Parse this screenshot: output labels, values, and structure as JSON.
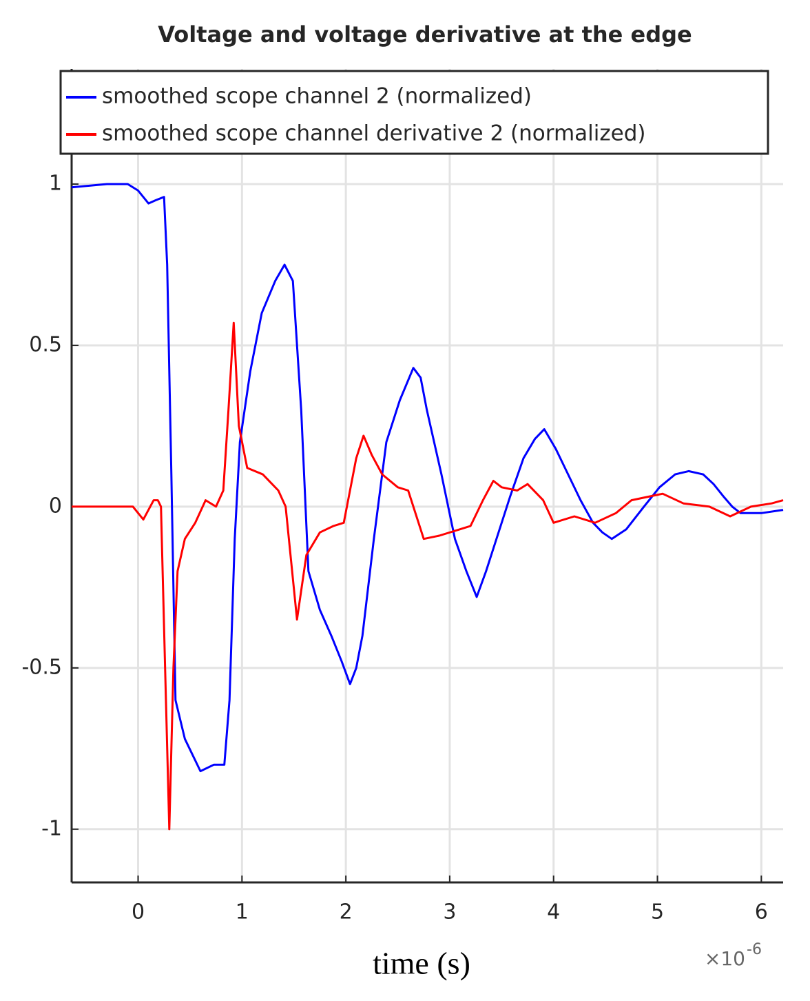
{
  "chart_data": {
    "type": "line",
    "title": "Voltage and voltage derivative at the edge",
    "xlabel": "time (s)",
    "x_multiplier": "×10",
    "x_exponent": "-6",
    "xlim": [
      -0.64,
      6.21
    ],
    "xticks": [
      0,
      1,
      2,
      3,
      4,
      5,
      6
    ],
    "ylim": [
      -1.165,
      1.357
    ],
    "yticks": [
      -1,
      -0.5,
      0,
      0.5,
      1
    ],
    "grid": true,
    "legend": "north",
    "series": [
      {
        "name": "smoothed scope channel 2 (normalized)",
        "color": "#0000ff",
        "x": [
          -0.64,
          -0.3,
          -0.1,
          0.0,
          0.1,
          0.17,
          0.25,
          0.28,
          0.32,
          0.36,
          0.45,
          0.6,
          0.73,
          0.83,
          0.88,
          0.93,
          0.98,
          1.08,
          1.19,
          1.32,
          1.41,
          1.49,
          1.57,
          1.64,
          1.75,
          1.86,
          1.96,
          2.04,
          2.1,
          2.16,
          2.27,
          2.39,
          2.52,
          2.65,
          2.72,
          2.78,
          2.92,
          3.05,
          3.16,
          3.26,
          3.35,
          3.45,
          3.58,
          3.71,
          3.82,
          3.91,
          4.02,
          4.14,
          4.26,
          4.38,
          4.47,
          4.56,
          4.7,
          4.87,
          5.02,
          5.17,
          5.3,
          5.44,
          5.54,
          5.64,
          5.72,
          5.8,
          6.0,
          6.21
        ],
        "values": [
          0.99,
          1.0,
          1.0,
          0.98,
          0.94,
          0.95,
          0.96,
          0.75,
          0.1,
          -0.6,
          -0.72,
          -0.82,
          -0.8,
          -0.8,
          -0.6,
          -0.1,
          0.2,
          0.42,
          0.6,
          0.7,
          0.75,
          0.7,
          0.3,
          -0.2,
          -0.32,
          -0.4,
          -0.48,
          -0.55,
          -0.5,
          -0.4,
          -0.1,
          0.2,
          0.33,
          0.43,
          0.4,
          0.3,
          0.1,
          -0.1,
          -0.2,
          -0.28,
          -0.2,
          -0.1,
          0.03,
          0.15,
          0.21,
          0.24,
          0.18,
          0.1,
          0.02,
          -0.05,
          -0.08,
          -0.1,
          -0.07,
          0.0,
          0.06,
          0.1,
          0.11,
          0.1,
          0.07,
          0.03,
          0.0,
          -0.02,
          -0.02,
          -0.01
        ]
      },
      {
        "name": "smoothed scope channel derivative 2 (normalized)",
        "color": "#ff0000",
        "x": [
          -0.64,
          -0.3,
          -0.05,
          0.05,
          0.1,
          0.15,
          0.19,
          0.22,
          0.26,
          0.3,
          0.34,
          0.38,
          0.45,
          0.55,
          0.65,
          0.75,
          0.82,
          0.87,
          0.92,
          0.97,
          1.05,
          1.2,
          1.35,
          1.42,
          1.53,
          1.62,
          1.75,
          1.88,
          1.98,
          2.1,
          2.17,
          2.25,
          2.35,
          2.5,
          2.6,
          2.75,
          2.9,
          3.1,
          3.2,
          3.32,
          3.42,
          3.5,
          3.65,
          3.75,
          3.9,
          4.0,
          4.2,
          4.4,
          4.6,
          4.75,
          4.9,
          5.05,
          5.25,
          5.5,
          5.7,
          5.9,
          6.1,
          6.21
        ],
        "values": [
          0.0,
          0.0,
          0.0,
          -0.04,
          -0.01,
          0.02,
          0.02,
          0.0,
          -0.5,
          -1.0,
          -0.5,
          -0.2,
          -0.1,
          -0.05,
          0.02,
          0.0,
          0.05,
          0.3,
          0.57,
          0.25,
          0.12,
          0.1,
          0.05,
          0.0,
          -0.35,
          -0.15,
          -0.08,
          -0.06,
          -0.05,
          0.15,
          0.22,
          0.16,
          0.1,
          0.06,
          0.05,
          -0.1,
          -0.09,
          -0.07,
          -0.06,
          0.02,
          0.08,
          0.06,
          0.05,
          0.07,
          0.02,
          -0.05,
          -0.03,
          -0.05,
          -0.02,
          0.02,
          0.03,
          0.04,
          0.01,
          0.0,
          -0.03,
          0.0,
          0.01,
          0.02
        ]
      }
    ]
  }
}
